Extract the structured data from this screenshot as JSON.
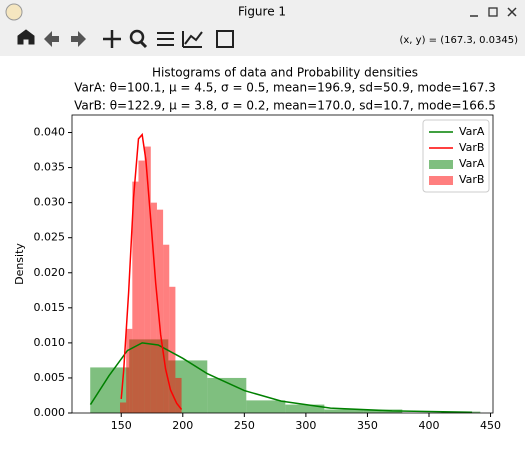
{
  "window": {
    "title": "Figure 1",
    "status": "(x, y) = (167.3, 0.0345)"
  },
  "chart_data": {
    "type": "histogram",
    "title": [
      "Histograms of data and Probability densities",
      "VarA: θ=100.1, μ = 4.5, σ = 0.5, mean=196.9, sd=50.9, mode=167.3",
      "VarB: θ=122.9, μ = 3.8, σ = 0.2, mean=170.0, sd=10.7, mode=166.5"
    ],
    "ylabel": "Density",
    "xlim": [
      110,
      452
    ],
    "ylim": [
      0,
      0.0425
    ],
    "xticks": [
      150,
      200,
      250,
      300,
      350,
      400,
      450
    ],
    "yticks": [
      {
        "value": 0,
        "label": "0.000"
      },
      {
        "value": 0.005,
        "label": "0.005"
      },
      {
        "value": 0.01,
        "label": "0.010"
      },
      {
        "value": 0.015,
        "label": "0.015"
      },
      {
        "value": 0.02,
        "label": "0.020"
      },
      {
        "value": 0.025,
        "label": "0.025"
      },
      {
        "value": 0.03,
        "label": "0.030"
      },
      {
        "value": 0.035,
        "label": "0.035"
      },
      {
        "value": 0.04,
        "label": "0.040"
      }
    ],
    "legend": "upper right",
    "series": [
      {
        "name": "VarA",
        "kind": "line",
        "color": "green",
        "x": [
          125,
          140,
          155,
          167,
          180,
          200,
          220,
          250,
          280,
          320,
          370,
          435
        ],
        "values": [
          0.0012,
          0.0053,
          0.0089,
          0.01,
          0.0097,
          0.0078,
          0.0056,
          0.0032,
          0.0017,
          0.0007,
          0.0003,
          0.0001
        ]
      },
      {
        "name": "VarB",
        "kind": "line",
        "color": "red",
        "x": [
          150,
          152,
          156,
          160,
          164,
          167,
          170,
          174,
          178,
          182,
          186,
          190,
          195,
          199
        ],
        "values": [
          0.002,
          0.0061,
          0.0172,
          0.0307,
          0.0391,
          0.0397,
          0.0361,
          0.0275,
          0.0185,
          0.0112,
          0.0063,
          0.0033,
          0.0014,
          0.0005
        ]
      },
      {
        "name": "VarA",
        "kind": "hist",
        "color": "green",
        "alpha": 0.5,
        "bins": [
          124.8,
          156.5,
          188.2,
          219.9,
          251.6,
          283.3,
          315,
          346.6,
          378.3,
          410,
          441.7
        ],
        "values": [
          0.0065,
          0.0105,
          0.0075,
          0.005,
          0.0018,
          0.0012,
          0.0005,
          0.0005,
          0.0,
          0.0002
        ]
      },
      {
        "name": "VarB",
        "kind": "hist",
        "color": "red",
        "alpha": 0.5,
        "bins": [
          149,
          154,
          159,
          164,
          169,
          174,
          179,
          184,
          189,
          194,
          199
        ],
        "values": [
          0.0015,
          0.012,
          0.033,
          0.036,
          0.038,
          0.03,
          0.029,
          0.024,
          0.018,
          0.005
        ]
      }
    ]
  }
}
